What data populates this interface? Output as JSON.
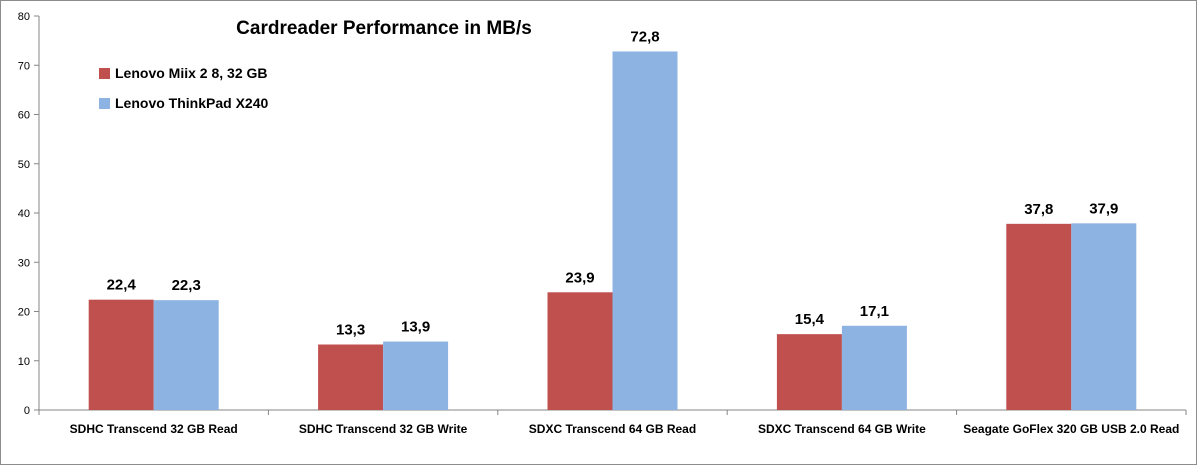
{
  "chart_data": {
    "type": "bar",
    "title": "Cardreader Performance in MB/s",
    "xlabel": "",
    "ylabel": "",
    "ylim": [
      0,
      80
    ],
    "yticks": [
      0,
      10,
      20,
      30,
      40,
      50,
      60,
      70,
      80
    ],
    "grid": false,
    "legend_position": "top-left",
    "categories": [
      "SDHC Transcend 32 GB Read",
      "SDHC Transcend 32 GB Write",
      "SDXC Transcend 64  GB Read",
      "SDXC Transcend 64  GB Write",
      "Seagate GoFlex 320 GB USB 2.0 Read"
    ],
    "series": [
      {
        "name": "Lenovo Miix 2 8, 32 GB",
        "color": "#c0504d",
        "values": [
          22.4,
          13.3,
          23.9,
          15.4,
          37.8
        ],
        "labels": [
          "22,4",
          "13,3",
          "23,9",
          "15,4",
          "37,8"
        ]
      },
      {
        "name": "Lenovo ThinkPad X240",
        "color": "#8db3e2",
        "values": [
          22.3,
          13.9,
          72.8,
          17.1,
          37.9
        ],
        "labels": [
          "22,3",
          "13,9",
          "72,8",
          "17,1",
          "37,9"
        ]
      }
    ]
  }
}
